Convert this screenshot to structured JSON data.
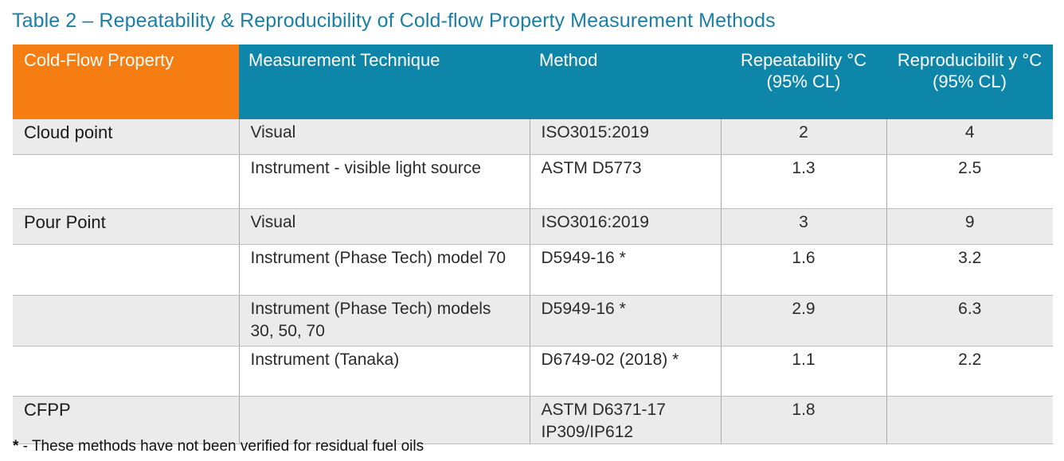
{
  "title": "Table 2 – Repeatability & Reproducibility of Cold-flow Property Measurement Methods",
  "headers": {
    "property": "Cold-Flow Property",
    "technique": "Measurement Technique",
    "method": "Method",
    "repeatability": "Repeatability °C (95% CL)",
    "reproducibility": "Reproducibilit y °C (95% CL)"
  },
  "rows": [
    {
      "property": "Cloud point",
      "technique": "Visual",
      "method": "ISO3015:2019",
      "repeatability": "2",
      "reproducibility": "4"
    },
    {
      "property": "",
      "technique": "Instrument - visible light source",
      "method": "ASTM D5773",
      "repeatability": "1.3",
      "reproducibility": "2.5"
    },
    {
      "property": "Pour Point",
      "technique": "Visual",
      "method": "ISO3016:2019",
      "repeatability": "3",
      "reproducibility": "9"
    },
    {
      "property": "",
      "technique": "Instrument (Phase Tech) model 70",
      "method": "D5949-16 *",
      "repeatability": "1.6",
      "reproducibility": "3.2"
    },
    {
      "property": "",
      "technique": "Instrument (Phase Tech) models 30, 50, 70",
      "method": "D5949-16 *",
      "repeatability": "2.9",
      "reproducibility": "6.3"
    },
    {
      "property": "",
      "technique": "Instrument (Tanaka)",
      "method": "D6749-02 (2018) *",
      "repeatability": "1.1",
      "reproducibility": "2.2"
    },
    {
      "property": "CFPP",
      "technique": "",
      "method": "ASTM D6371-17 IP309/IP612",
      "repeatability": "1.8",
      "reproducibility": ""
    }
  ],
  "footnote": {
    "marker": "*",
    "text": " - These methods have not been verified for residual fuel oils"
  },
  "colors": {
    "title": "#1a7fa6",
    "header_blue": "#0e86aa",
    "header_orange": "#f57d12",
    "row_shade": "#ebebeb"
  }
}
